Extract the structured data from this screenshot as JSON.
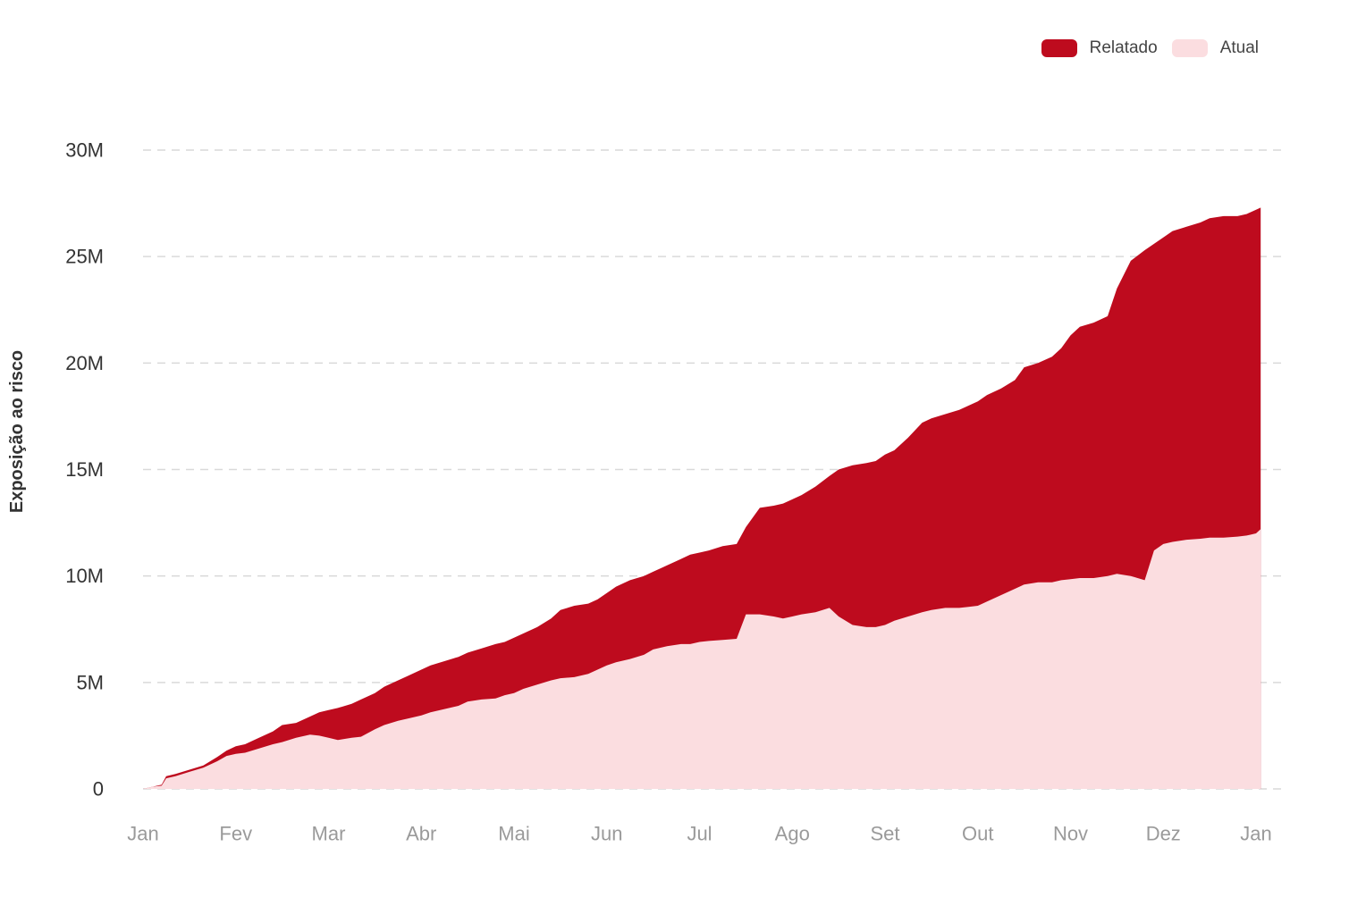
{
  "chart_data": {
    "type": "area",
    "title": "",
    "xlabel": "",
    "ylabel": "Exposição ao risco",
    "ylim": [
      0,
      30000000
    ],
    "y_ticks": [
      0,
      5000000,
      10000000,
      15000000,
      20000000,
      25000000,
      30000000
    ],
    "y_tick_labels": [
      "0",
      "5M",
      "10M",
      "15M",
      "20M",
      "25M",
      "30M"
    ],
    "x_tick_labels": [
      "Jan",
      "Fev",
      "Mar",
      "Abr",
      "Mai",
      "Jun",
      "Jul",
      "Ago",
      "Set",
      "Out",
      "Nov",
      "Dez",
      "Jan"
    ],
    "x_range_months": [
      0,
      12
    ],
    "grid": true,
    "legend_position": "top-right",
    "series": [
      {
        "name": "Relatado",
        "color": "#be0b1e",
        "x": [
          0,
          0.1,
          0.2,
          0.25,
          0.35,
          0.5,
          0.65,
          0.8,
          0.9,
          1.0,
          1.1,
          1.25,
          1.4,
          1.5,
          1.65,
          1.8,
          1.9,
          2.0,
          2.1,
          2.25,
          2.35,
          2.5,
          2.6,
          2.75,
          2.85,
          3.0,
          3.1,
          3.25,
          3.4,
          3.5,
          3.65,
          3.8,
          3.9,
          4.0,
          4.1,
          4.25,
          4.4,
          4.5,
          4.65,
          4.8,
          4.9,
          5.0,
          5.1,
          5.25,
          5.4,
          5.5,
          5.65,
          5.8,
          5.9,
          6.0,
          6.1,
          6.25,
          6.4,
          6.5,
          6.65,
          6.8,
          6.9,
          7.0,
          7.1,
          7.25,
          7.4,
          7.5,
          7.65,
          7.8,
          7.9,
          8.0,
          8.1,
          8.25,
          8.4,
          8.5,
          8.65,
          8.8,
          8.9,
          9.0,
          9.1,
          9.25,
          9.4,
          9.5,
          9.65,
          9.8,
          9.9,
          10.0,
          10.1,
          10.25,
          10.4,
          10.5,
          10.65,
          10.8,
          10.9,
          11.0,
          11.1,
          11.25,
          11.4,
          11.5,
          11.65,
          11.8,
          11.9,
          12.0,
          12.05
        ],
        "values": [
          0,
          100000,
          200000,
          600000,
          700000,
          900000,
          1100000,
          1500000,
          1800000,
          2000000,
          2100000,
          2400000,
          2700000,
          3000000,
          3100000,
          3400000,
          3600000,
          3700000,
          3800000,
          4000000,
          4200000,
          4500000,
          4800000,
          5100000,
          5300000,
          5600000,
          5800000,
          6000000,
          6200000,
          6400000,
          6600000,
          6800000,
          6900000,
          7100000,
          7300000,
          7600000,
          8000000,
          8400000,
          8600000,
          8700000,
          8900000,
          9200000,
          9500000,
          9800000,
          10000000,
          10200000,
          10500000,
          10800000,
          11000000,
          11100000,
          11200000,
          11400000,
          11500000,
          12300000,
          13200000,
          13300000,
          13400000,
          13600000,
          13800000,
          14200000,
          14700000,
          15000000,
          15200000,
          15300000,
          15400000,
          15700000,
          15900000,
          16500000,
          17200000,
          17400000,
          17600000,
          17800000,
          18000000,
          18200000,
          18500000,
          18800000,
          19200000,
          19800000,
          20000000,
          20300000,
          20700000,
          21300000,
          21700000,
          21900000,
          22200000,
          23500000,
          24800000,
          25300000,
          25600000,
          25900000,
          26200000,
          26400000,
          26600000,
          26800000,
          26900000,
          26900000,
          27000000,
          27200000,
          27300000
        ]
      },
      {
        "name": "Atual",
        "color": "#fbdde0",
        "x": [
          0,
          0.1,
          0.2,
          0.25,
          0.35,
          0.5,
          0.65,
          0.8,
          0.9,
          1.0,
          1.1,
          1.25,
          1.4,
          1.5,
          1.65,
          1.8,
          1.9,
          2.0,
          2.1,
          2.25,
          2.35,
          2.5,
          2.6,
          2.75,
          2.85,
          3.0,
          3.1,
          3.25,
          3.4,
          3.5,
          3.65,
          3.8,
          3.9,
          4.0,
          4.1,
          4.25,
          4.4,
          4.5,
          4.65,
          4.8,
          4.9,
          5.0,
          5.1,
          5.25,
          5.4,
          5.5,
          5.65,
          5.8,
          5.9,
          6.0,
          6.1,
          6.25,
          6.4,
          6.5,
          6.65,
          6.8,
          6.9,
          7.0,
          7.1,
          7.25,
          7.4,
          7.5,
          7.65,
          7.8,
          7.9,
          8.0,
          8.1,
          8.25,
          8.4,
          8.5,
          8.65,
          8.8,
          8.9,
          9.0,
          9.1,
          9.25,
          9.4,
          9.5,
          9.65,
          9.8,
          9.9,
          10.0,
          10.1,
          10.25,
          10.4,
          10.5,
          10.65,
          10.8,
          10.9,
          11.0,
          11.1,
          11.25,
          11.4,
          11.5,
          11.65,
          11.8,
          11.9,
          12.0,
          12.05
        ],
        "values": [
          0,
          100000,
          150000,
          500000,
          600000,
          800000,
          1000000,
          1300000,
          1550000,
          1650000,
          1700000,
          1900000,
          2100000,
          2200000,
          2400000,
          2550000,
          2500000,
          2400000,
          2300000,
          2400000,
          2450000,
          2800000,
          3000000,
          3200000,
          3300000,
          3450000,
          3600000,
          3750000,
          3900000,
          4100000,
          4200000,
          4250000,
          4400000,
          4500000,
          4700000,
          4900000,
          5100000,
          5200000,
          5250000,
          5400000,
          5600000,
          5800000,
          5950000,
          6100000,
          6300000,
          6550000,
          6700000,
          6800000,
          6800000,
          6900000,
          6950000,
          7000000,
          7050000,
          8200000,
          8200000,
          8100000,
          8000000,
          8100000,
          8200000,
          8300000,
          8500000,
          8100000,
          7700000,
          7600000,
          7600000,
          7700000,
          7900000,
          8100000,
          8300000,
          8400000,
          8500000,
          8500000,
          8550000,
          8600000,
          8800000,
          9100000,
          9400000,
          9600000,
          9700000,
          9700000,
          9800000,
          9850000,
          9900000,
          9900000,
          10000000,
          10100000,
          10000000,
          9800000,
          11200000,
          11500000,
          11600000,
          11700000,
          11750000,
          11800000,
          11800000,
          11850000,
          11900000,
          12000000,
          12200000
        ]
      }
    ]
  },
  "legend": {
    "items": [
      {
        "label": "Relatado",
        "color": "#be0b1e"
      },
      {
        "label": "Atual",
        "color": "#fbdde0"
      }
    ]
  }
}
